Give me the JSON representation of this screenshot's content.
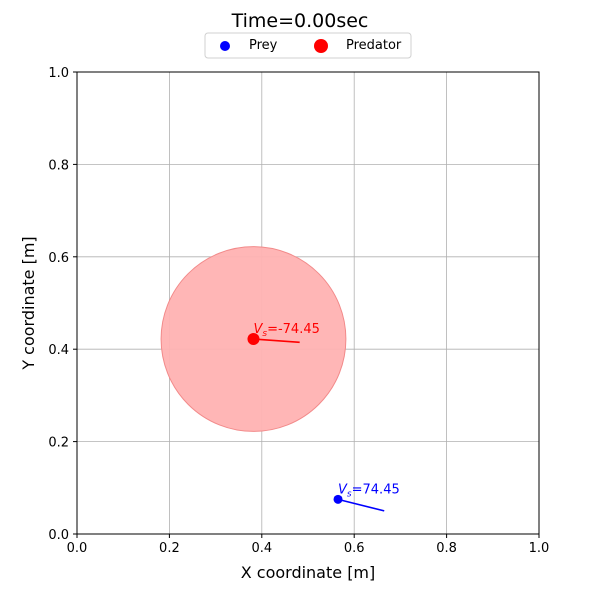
{
  "chart_data": {
    "type": "scatter",
    "title": "Time=0.00sec",
    "xlabel": "X coordinate [m]",
    "ylabel": "Y coordinate [m]",
    "xlim": [
      0.0,
      1.0
    ],
    "ylim": [
      0.0,
      1.0
    ],
    "xticks": [
      "0.0",
      "0.2",
      "0.4",
      "0.6",
      "0.8",
      "1.0"
    ],
    "yticks": [
      "0.0",
      "0.2",
      "0.4",
      "0.6",
      "0.8",
      "1.0"
    ],
    "grid": true,
    "legend_position": "top-center",
    "legend": [
      {
        "label": "Prey",
        "color": "#0000ff"
      },
      {
        "label": "Predator",
        "color": "#ff0000"
      }
    ],
    "series": [
      {
        "name": "Prey",
        "color": "#0000ff",
        "x": 0.565,
        "y": 0.075,
        "velocity_end": [
          0.665,
          0.05
        ],
        "annotation": "=74.45"
      },
      {
        "name": "Predator",
        "color": "#ff0000",
        "x": 0.382,
        "y": 0.422,
        "velocity_end": [
          0.482,
          0.415
        ],
        "annotation": "=-74.45",
        "radius": 0.2,
        "radius_color": "#ffb2b2"
      }
    ]
  }
}
